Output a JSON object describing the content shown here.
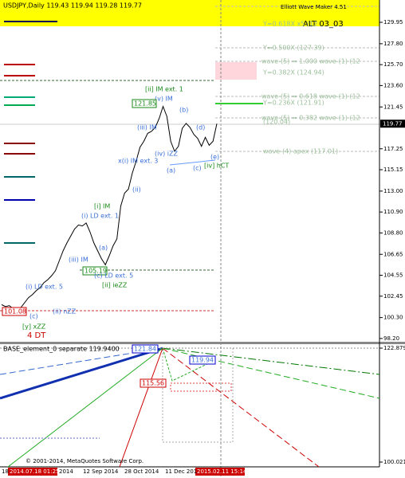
{
  "header": {
    "symbol_line": "USDJPY,Daily  119.43 119.94 119.28 119.77",
    "tool": "Elliott Wave Maker 4.51",
    "alt": "ALT 03_03"
  },
  "price_chart": {
    "type": "line",
    "ylim": [
      97.95,
      132.19
    ],
    "yticks": [
      129.95,
      {
        "value": 127.8,
        "label": "127.80"
      },
      {
        "value": 125.7,
        "label": "125.70"
      },
      {
        "value": 123.6,
        "label": "123.60"
      },
      121.45,
      117.25,
      115.15,
      {
        "value": 113,
        "label": "113.00"
      },
      {
        "value": 110.9,
        "label": "110.90"
      },
      {
        "value": 108.8,
        "label": "108.80"
      },
      106.65,
      104.55,
      102.45,
      {
        "value": 100.3,
        "label": "100.30"
      },
      {
        "value": 98.2,
        "label": "98.20"
      }
    ],
    "last_price": 119.77,
    "close": [
      101.6,
      101.4,
      101.5,
      101.2,
      101.0,
      101.3,
      101.8,
      102.3,
      102.6,
      103.0,
      103.3,
      103.8,
      104.1,
      104.5,
      105.0,
      106.0,
      107.0,
      107.8,
      108.5,
      109.2,
      109.6,
      109.5,
      109.8,
      108.9,
      107.8,
      107.0,
      106.2,
      105.6,
      106.5,
      107.5,
      108.2,
      111.5,
      112.8,
      113.2,
      114.8,
      116.0,
      117.4,
      118.0,
      118.8,
      119.0,
      119.4,
      120.3,
      121.5,
      120.5,
      118.0,
      117.0,
      117.5,
      119.3,
      119.8,
      119.4,
      118.7,
      118.3,
      117.5,
      118.4,
      117.6,
      118.0,
      119.77
    ],
    "levels": [
      "Y=0.618X x5 (12",
      "Y=0.500X (127.39)",
      "wave-(5) = 1.000 wave-(1) (12",
      "Y=0.382X (124.94)",
      "wave-(5) = 0.618 wave-(1) (12",
      "Y=0.236X (121.91)",
      "wave-(5) = 0.382 wave-(1) (12",
      "(120.04)",
      "wave-(4) apex (117.01)"
    ],
    "waves": [
      "[ii] IM ext. 1",
      "(v) IM",
      "121.85",
      "(b)",
      "(d)",
      "(iii) IM",
      "(iv) iZZ",
      "x(i) IM ext. 3",
      "(a)",
      "(c)",
      "(e)",
      "[iv] hCT",
      "(ii)",
      "[i] IM",
      "(i) LD ext. 1",
      "(a)",
      "(iii) IM",
      "105.19",
      "(c) LD ext. 5",
      "[ii] ieZZ",
      "(i) LD ext. 5",
      "(ii) nZZ",
      "101.08",
      "(c)",
      "[y] xZZ",
      "4 DT"
    ]
  },
  "indicator": {
    "title": "BASE_element_0 separate 119.9400",
    "ylim": [
      99.22,
      123.68
    ],
    "yticks": [
      122.879,
      100.021
    ],
    "labels": [
      "121.84",
      "119.94",
      "115.56"
    ],
    "copyright": "© 2001-2014, MetaQuotes Software Corp."
  },
  "x_axis": [
    "18",
    "2014.07.18 01:25",
    "2014",
    "12 Sep 2014",
    "28 Oct 2014",
    "11 Dec 201",
    "2015.02.11 15:14"
  ]
}
